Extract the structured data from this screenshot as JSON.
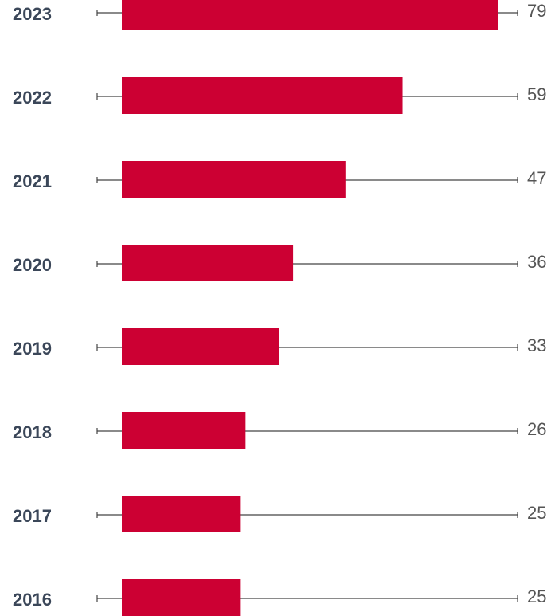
{
  "chart_data": {
    "type": "bar",
    "orientation": "horizontal",
    "categories": [
      "2023",
      "2022",
      "2021",
      "2020",
      "2019",
      "2018",
      "2017",
      "2016"
    ],
    "values": [
      79,
      59,
      47,
      36,
      33,
      26,
      25,
      25
    ],
    "color": "#cc0033"
  }
}
